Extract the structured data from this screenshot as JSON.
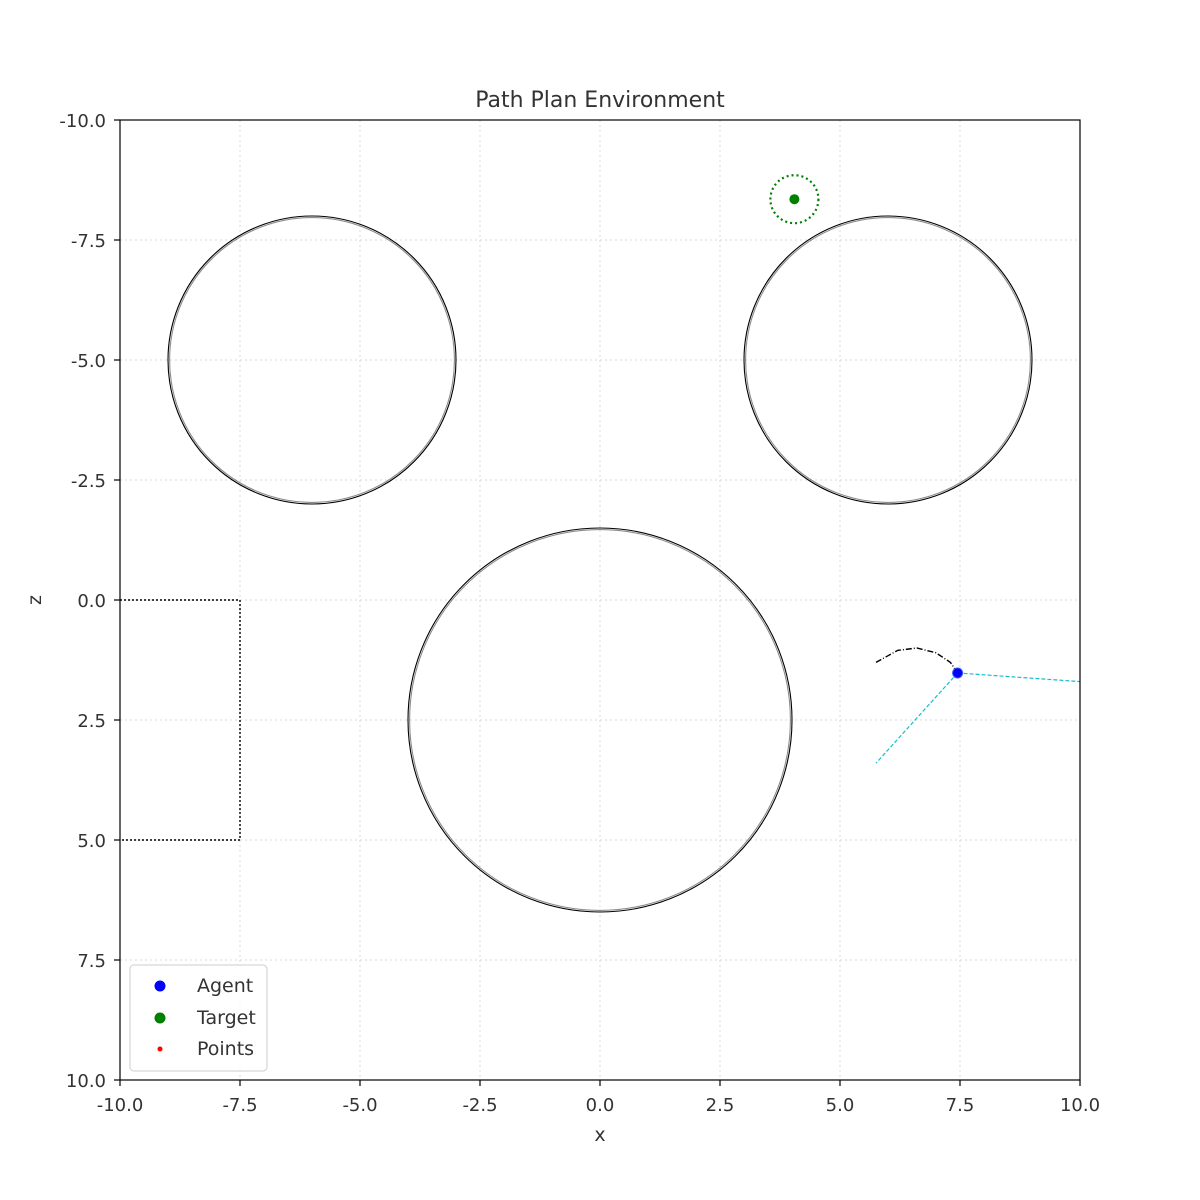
{
  "chart_data": {
    "type": "scatter",
    "title": "Path Plan Environment",
    "xlabel": "x",
    "ylabel": "z",
    "xlim": [
      -10,
      10
    ],
    "ylim": [
      -10,
      10
    ],
    "y_inverted": true,
    "grid": true,
    "x_ticks": [
      "-10.0",
      "-7.5",
      "-5.0",
      "-2.5",
      "0.0",
      "2.5",
      "5.0",
      "7.5",
      "10.0"
    ],
    "y_ticks": [
      "-10.0",
      "-7.5",
      "-5.0",
      "-2.5",
      "0.0",
      "2.5",
      "5.0",
      "7.5",
      "10.0"
    ],
    "circle_obstacles": [
      {
        "cx": -6,
        "cz": -5,
        "r": 3
      },
      {
        "cx": 6,
        "cz": -5,
        "r": 3
      },
      {
        "cx": 0,
        "cz": 2.5,
        "r": 4
      }
    ],
    "rect_obstacle": {
      "x1": -10,
      "z1": 0,
      "x2": -7.5,
      "z2": 5
    },
    "agent": {
      "x": 7.45,
      "z": 1.52,
      "color": "#0000ff"
    },
    "target": {
      "x": 4.05,
      "z": -8.35,
      "radius": 0.5,
      "color": "#008000"
    },
    "trail": [
      [
        5.75,
        1.3
      ],
      [
        6.2,
        1.05
      ],
      [
        6.6,
        1.0
      ],
      [
        7.0,
        1.1
      ],
      [
        7.3,
        1.3
      ],
      [
        7.45,
        1.52
      ]
    ],
    "rays": [
      {
        "x": 10.0,
        "z": 1.7
      },
      {
        "x": 5.75,
        "z": 3.4
      }
    ],
    "ray_color": "#17becf",
    "legend": {
      "position": "lower-left",
      "items": [
        {
          "label": "Agent",
          "color": "#0000ff"
        },
        {
          "label": "Target",
          "color": "#008000"
        },
        {
          "label": "Points",
          "color": "#ff0000"
        }
      ]
    }
  }
}
